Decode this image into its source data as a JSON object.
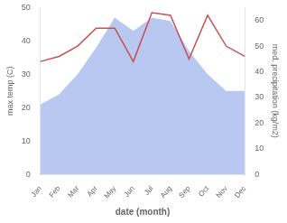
{
  "chart_data": {
    "type": "line",
    "xlabel": "date (month)",
    "ylabel": "max temp (C)",
    "y2label": "med. precipitation (kg/m2)",
    "categories": [
      "Jan",
      "Feb",
      "Mar",
      "Apr",
      "May",
      "Jun",
      "Jul",
      "Aug",
      "Sep",
      "Oct",
      "Nov",
      "Dec"
    ],
    "series": [
      {
        "type": "area",
        "color": "#b8c8f0",
        "values": [
          21,
          24,
          30,
          38,
          47,
          43,
          47,
          46,
          37,
          30,
          25,
          25
        ]
      },
      {
        "type": "line",
        "color": "#c85050",
        "axis": "y2",
        "values": [
          44,
          46,
          50,
          57,
          57,
          44,
          63,
          62,
          45,
          62,
          50,
          46
        ]
      }
    ],
    "ylim": [
      0,
      50
    ],
    "yticks": [
      0,
      10,
      20,
      30,
      40,
      50
    ],
    "y2lim": [
      0,
      65
    ],
    "y2ticks": [
      0,
      10,
      20,
      30,
      40,
      50,
      60
    ],
    "grid": false
  }
}
